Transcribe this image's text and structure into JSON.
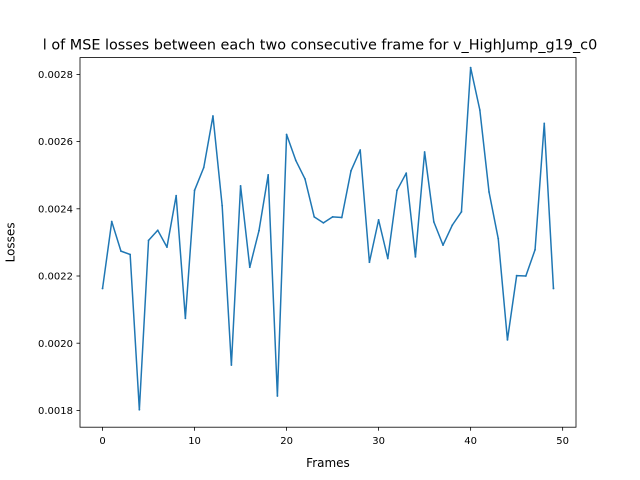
{
  "chart_data": {
    "type": "line",
    "title": "l of MSE losses between each two consecutive frame for v_HighJump_g19_c0",
    "xlabel": "Frames",
    "ylabel": "Losses",
    "xlim": [
      -2.45,
      51.45
    ],
    "ylim": [
      0.00175,
      0.00285
    ],
    "xticks": [
      0,
      10,
      20,
      30,
      40,
      50
    ],
    "xtick_labels": [
      "0",
      "10",
      "20",
      "30",
      "40",
      "50"
    ],
    "yticks": [
      0.0018,
      0.002,
      0.0022,
      0.0024,
      0.0026,
      0.0028
    ],
    "ytick_labels": [
      "0.0018",
      "0.0020",
      "0.0022",
      "0.0024",
      "0.0026",
      "0.0028"
    ],
    "grid": false,
    "line_color": "#1f77b4",
    "x": [
      0,
      1,
      2,
      3,
      4,
      5,
      6,
      7,
      8,
      9,
      10,
      11,
      12,
      13,
      14,
      15,
      16,
      17,
      18,
      19,
      20,
      21,
      22,
      23,
      24,
      25,
      26,
      27,
      28,
      29,
      30,
      31,
      32,
      33,
      34,
      35,
      36,
      37,
      38,
      39,
      40,
      41,
      42,
      43,
      44,
      45,
      46,
      47,
      48,
      49
    ],
    "y": [
      0.002163,
      0.002362,
      0.002274,
      0.002264,
      0.001802,
      0.002306,
      0.002336,
      0.002286,
      0.002439,
      0.002074,
      0.002455,
      0.002523,
      0.002676,
      0.002409,
      0.001935,
      0.002468,
      0.002226,
      0.002335,
      0.002501,
      0.001843,
      0.002621,
      0.002544,
      0.002489,
      0.002376,
      0.002358,
      0.002376,
      0.002374,
      0.002513,
      0.002575,
      0.002241,
      0.002367,
      0.002252,
      0.002455,
      0.002506,
      0.002257,
      0.002569,
      0.002361,
      0.002292,
      0.002351,
      0.002391,
      0.00282,
      0.002694,
      0.00245,
      0.002311,
      0.00201,
      0.002201,
      0.0022,
      0.002278,
      0.002654,
      0.002163
    ]
  }
}
